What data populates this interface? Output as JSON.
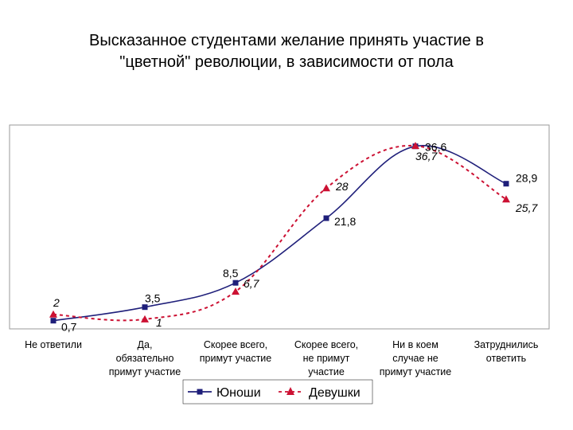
{
  "chart_data": {
    "type": "line",
    "title": [
      "Высказанное студентами желание принять участие в",
      "\"цветной\" революции, в зависимости от пола"
    ],
    "categories": [
      [
        "Не ответили"
      ],
      [
        "Да,",
        "обязательно",
        "примут участие"
      ],
      [
        "Скорее всего,",
        "примут участие"
      ],
      [
        "Скорее всего,",
        "не примут",
        "участие"
      ],
      [
        "Ни в коем",
        "случае не",
        "примут участие"
      ],
      [
        "Затруднились",
        "ответить"
      ]
    ],
    "series": [
      {
        "name": "Юноши",
        "values": [
          0.7,
          3.5,
          8.5,
          21.8,
          36.6,
          28.9
        ],
        "labels": [
          "0,7",
          "3,5",
          "8,5",
          "21,8",
          "36,6",
          "28,9"
        ],
        "color": "#1f1f7a",
        "line": "solid",
        "marker": "square"
      },
      {
        "name": "Девушки",
        "values": [
          2,
          1,
          6.7,
          28,
          36.7,
          25.7
        ],
        "labels": [
          "2",
          "1",
          "6,7",
          "28",
          "36,7",
          "25,7"
        ],
        "color": "#cc1133",
        "line": "dashed",
        "marker": "triangle"
      }
    ],
    "ylim": [
      0,
      40
    ],
    "grid": false,
    "legend": "bottom"
  }
}
